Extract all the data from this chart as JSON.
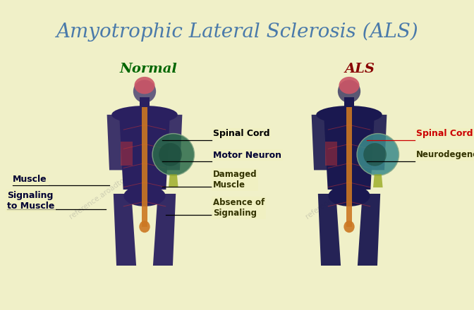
{
  "background_color": "#f0f0c8",
  "title": "Amyotrophic Lateral Sclerosis (ALS)",
  "title_color": "#4a7aaa",
  "title_fontsize": 20,
  "watermark1": "reference.aroadtome.com",
  "watermark2": "reference.aroadtome.com",
  "normal_label": "Normal",
  "normal_label_color": "#006600",
  "als_label": "ALS",
  "als_label_color": "#880000",
  "body_color": "#2a2060",
  "body_color2": "#1a1850",
  "spine_color": "#cc7722",
  "head_color_top": "#cc5566",
  "head_color_brain": "#cc4455",
  "nerve_color": "#cc3333",
  "muscle_circle_normal": "#2a6a4a",
  "muscle_circle_als": "#3a8a8a",
  "highlight_yellow": "#e8e844",
  "label_bg": "#f0f0c0",
  "ann_color_normal_spinalcord": "#000000",
  "ann_color_normal_motorneuron": "#000033",
  "ann_color_normal_muscle": "#000033",
  "ann_color_normal_signaling": "#000033",
  "ann_color_normal_damaged": "#333300",
  "ann_color_normal_absence": "#333300",
  "ann_color_als_spinalcord": "#cc0000",
  "ann_color_als_neurodegeneration": "#333300"
}
